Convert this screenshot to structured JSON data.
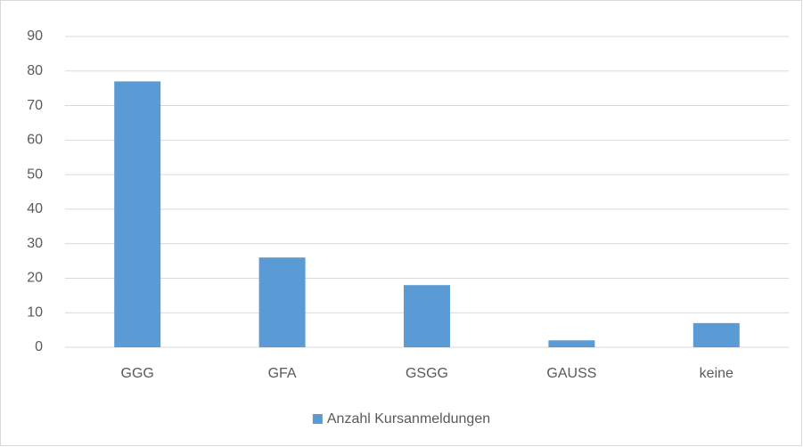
{
  "chart_data": {
    "type": "bar",
    "categories": [
      "GGG",
      "GFA",
      "GSGG",
      "GAUSS",
      "keine"
    ],
    "series": [
      {
        "name": "Anzahl Kursanmeldungen",
        "color": "#5b9bd5",
        "values": [
          77,
          26,
          18,
          2,
          7
        ]
      }
    ],
    "ylim": [
      0,
      90
    ],
    "yticks": [
      0,
      10,
      20,
      30,
      40,
      50,
      60,
      70,
      80,
      90
    ],
    "grid": true,
    "legend": "bottom"
  }
}
